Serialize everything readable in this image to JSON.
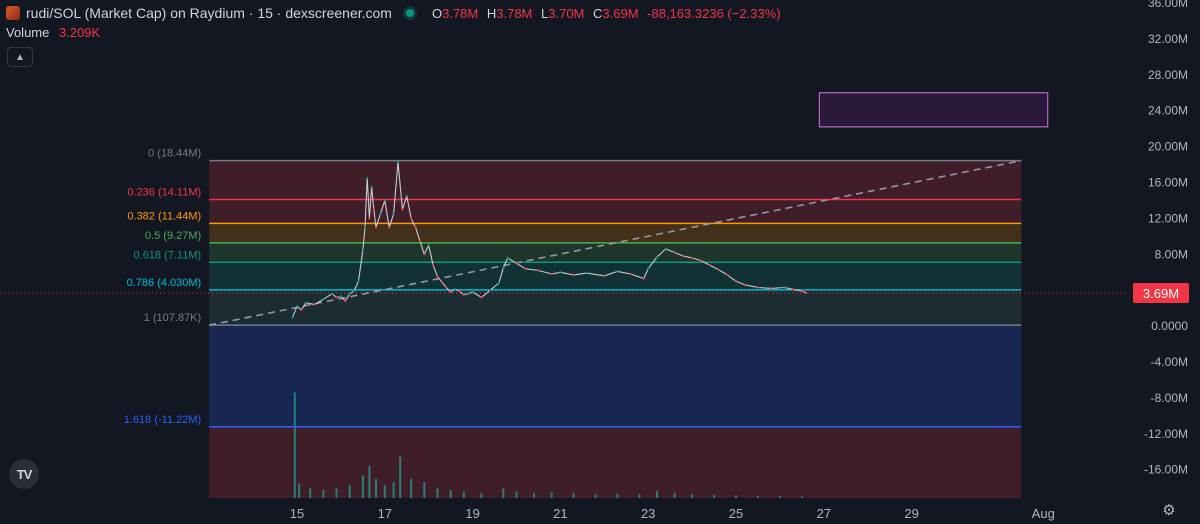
{
  "header": {
    "title": "rudi/SOL (Market Cap) on Raydium · 15 · dexscreener.com",
    "ohlc": [
      {
        "key": "O",
        "value": "3.78M"
      },
      {
        "key": "H",
        "value": "3.78M"
      },
      {
        "key": "L",
        "value": "3.70M"
      },
      {
        "key": "C",
        "value": "3.69M"
      }
    ],
    "change": "-88,163.3236 (−2.33%)",
    "volume_label": "Volume",
    "volume_value": "3.209K"
  },
  "colors": {
    "background": "#131722",
    "up": "#089981",
    "down": "#f23645",
    "text": "#d1d4dc"
  },
  "chart_data": {
    "type": "line",
    "title": "rudi/SOL (Market Cap) on Raydium · 15 · dexscreener.com",
    "last_price": 3.69,
    "last_price_label": "3.69M",
    "y_unit": "M",
    "ylim": [
      -19,
      36
    ],
    "y_ticks": [
      {
        "v": 36,
        "label": "36.00M"
      },
      {
        "v": 32,
        "label": "32.00M"
      },
      {
        "v": 28,
        "label": "28.00M"
      },
      {
        "v": 24,
        "label": "24.00M"
      },
      {
        "v": 20,
        "label": "20.00M"
      },
      {
        "v": 16,
        "label": "16.00M"
      },
      {
        "v": 12,
        "label": "12.00M"
      },
      {
        "v": 8,
        "label": "8.00M"
      },
      {
        "v": 4,
        "label": "4.000M"
      },
      {
        "v": 0,
        "label": "0.0000"
      },
      {
        "v": -4,
        "label": "-4.00M"
      },
      {
        "v": -8,
        "label": "-8.00M"
      },
      {
        "v": -12,
        "label": "-12.00M"
      },
      {
        "v": -16,
        "label": "-16.00M"
      }
    ],
    "xlim": [
      12.8,
      33.2
    ],
    "x_ticks": [
      {
        "v": 15,
        "label": "15"
      },
      {
        "v": 17,
        "label": "17"
      },
      {
        "v": 19,
        "label": "19"
      },
      {
        "v": 21,
        "label": "21"
      },
      {
        "v": 23,
        "label": "23"
      },
      {
        "v": 25,
        "label": "25"
      },
      {
        "v": 27,
        "label": "27"
      },
      {
        "v": 29,
        "label": "29"
      },
      {
        "v": 32,
        "label": "Aug"
      }
    ],
    "series": [
      {
        "values_x": [
          14.9,
          15.0,
          15.1,
          15.2,
          15.4,
          15.6,
          15.8,
          15.9,
          16.0,
          16.1,
          16.2,
          16.3,
          16.4,
          16.5,
          16.55,
          16.6,
          16.65,
          16.7,
          16.75,
          16.8,
          16.9,
          17.0,
          17.1,
          17.2,
          17.3,
          17.4,
          17.5,
          17.6,
          17.7,
          17.8,
          17.9,
          18.0,
          18.1,
          18.2,
          18.3,
          18.4,
          18.5,
          18.6,
          18.7,
          18.8,
          18.9,
          19.0,
          19.2,
          19.4,
          19.6,
          19.7,
          19.8,
          20.0,
          20.2,
          20.5,
          20.8,
          21.0,
          21.3,
          21.6,
          22.0,
          22.3,
          22.6,
          22.9,
          23.0,
          23.2,
          23.4,
          23.6,
          23.8,
          24.0,
          24.2,
          24.4,
          24.6,
          24.8,
          25.0,
          25.2,
          25.5,
          25.8,
          26.1,
          26.3,
          26.5,
          26.6
        ],
        "values_y": [
          1.0,
          2.2,
          1.8,
          2.6,
          2.4,
          3.0,
          3.6,
          3.2,
          3.3,
          2.8,
          3.6,
          3.9,
          5.0,
          8.5,
          11.0,
          16.5,
          12.0,
          15.5,
          13.0,
          11.0,
          12.5,
          14.0,
          11.0,
          12.5,
          18.3,
          13.0,
          14.5,
          12.0,
          11.0,
          9.5,
          8.0,
          9.0,
          6.8,
          5.5,
          4.9,
          4.3,
          3.8,
          4.1,
          3.9,
          3.5,
          3.6,
          3.8,
          3.2,
          4.0,
          4.8,
          6.5,
          7.6,
          7.0,
          6.4,
          6.2,
          5.8,
          6.0,
          5.7,
          5.9,
          5.6,
          6.1,
          5.8,
          5.3,
          6.4,
          7.7,
          8.6,
          8.2,
          7.8,
          7.6,
          7.3,
          6.8,
          6.3,
          5.7,
          5.0,
          4.6,
          4.3,
          4.2,
          4.3,
          4.1,
          3.9,
          3.69
        ]
      }
    ],
    "volume": [
      {
        "x": 14.95,
        "v": 33
      },
      {
        "x": 15.05,
        "v": 4.5
      },
      {
        "x": 15.3,
        "v": 3
      },
      {
        "x": 15.6,
        "v": 2.5
      },
      {
        "x": 15.9,
        "v": 3
      },
      {
        "x": 16.2,
        "v": 4
      },
      {
        "x": 16.5,
        "v": 7
      },
      {
        "x": 16.65,
        "v": 10
      },
      {
        "x": 16.8,
        "v": 6
      },
      {
        "x": 17.0,
        "v": 4
      },
      {
        "x": 17.2,
        "v": 5
      },
      {
        "x": 17.35,
        "v": 13
      },
      {
        "x": 17.6,
        "v": 6
      },
      {
        "x": 17.9,
        "v": 5
      },
      {
        "x": 18.2,
        "v": 3
      },
      {
        "x": 18.5,
        "v": 2.5
      },
      {
        "x": 18.8,
        "v": 2
      },
      {
        "x": 19.2,
        "v": 1.5
      },
      {
        "x": 19.7,
        "v": 3
      },
      {
        "x": 20.0,
        "v": 2
      },
      {
        "x": 20.4,
        "v": 1.5
      },
      {
        "x": 20.8,
        "v": 1.8
      },
      {
        "x": 21.3,
        "v": 1.5
      },
      {
        "x": 21.8,
        "v": 1.2
      },
      {
        "x": 22.3,
        "v": 1.3
      },
      {
        "x": 22.8,
        "v": 1.2
      },
      {
        "x": 23.2,
        "v": 2.2
      },
      {
        "x": 23.6,
        "v": 1.6
      },
      {
        "x": 24.0,
        "v": 1.2
      },
      {
        "x": 24.5,
        "v": 1.0
      },
      {
        "x": 25.0,
        "v": 0.8
      },
      {
        "x": 25.5,
        "v": 0.7
      },
      {
        "x": 26.0,
        "v": 0.6
      },
      {
        "x": 26.5,
        "v": 0.5
      }
    ],
    "fib_levels": [
      {
        "ratio": 0,
        "value": 18.44,
        "label": "0 (18.44M)",
        "color": "#787b86"
      },
      {
        "ratio": 0.236,
        "value": 14.11,
        "label": "0.236 (14.11M)",
        "color": "#f23645"
      },
      {
        "ratio": 0.382,
        "value": 11.44,
        "label": "0.382 (11.44M)",
        "color": "#ff9800"
      },
      {
        "ratio": 0.5,
        "value": 9.27,
        "label": "0.5 (9.27M)",
        "color": "#4caf50"
      },
      {
        "ratio": 0.618,
        "value": 7.11,
        "label": "0.618 (7.11M)",
        "color": "#089981"
      },
      {
        "ratio": 0.786,
        "value": 4.03,
        "label": "0.786 (4.030M)",
        "color": "#00bcd4"
      },
      {
        "ratio": 1,
        "value": 0.10787,
        "label": "1 (107.87K)",
        "color": "#787b86"
      },
      {
        "ratio": 1.618,
        "value": -11.22,
        "label": "1.618 (-11.22M)",
        "color": "#2962ff"
      }
    ],
    "fib_x_range": [
      13.0,
      31.5
    ],
    "fib_bottom_value": -19,
    "trend_line": {
      "from": [
        13.0,
        0.1
      ],
      "to": [
        31.5,
        18.44
      ]
    },
    "rectangle": {
      "x0": 26.9,
      "x1": 32.1,
      "y0": 22.2,
      "y1": 26.0
    }
  }
}
